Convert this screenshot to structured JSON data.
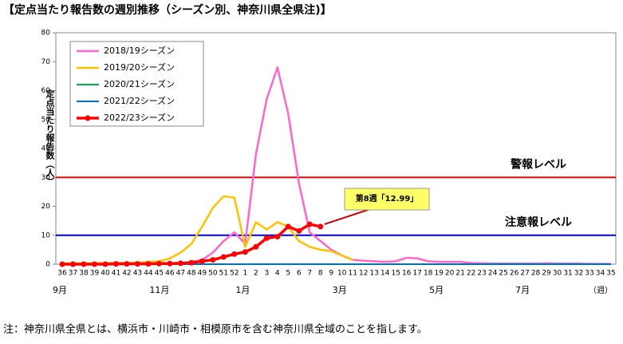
{
  "chart_data": {
    "type": "line",
    "title": "【定点当たり報告数の週別推移（シーズン別、神奈川県全県注)】",
    "y_label": "定点当たり報告数（人）",
    "x_unit": "（週）",
    "footnote": "注：神奈川県全県とは、横浜市・川崎市・相模原市を含む神奈川県全域のことを指します。",
    "categories": [
      "36",
      "37",
      "38",
      "39",
      "40",
      "41",
      "42",
      "43",
      "44",
      "45",
      "46",
      "47",
      "48",
      "49",
      "50",
      "51",
      "52",
      "1",
      "2",
      "3",
      "4",
      "5",
      "6",
      "7",
      "8",
      "9",
      "10",
      "11",
      "12",
      "13",
      "14",
      "15",
      "16",
      "17",
      "18",
      "19",
      "20",
      "21",
      "22",
      "23",
      "24",
      "25",
      "26",
      "27",
      "28",
      "29",
      "30",
      "31",
      "32",
      "33",
      "34",
      "35"
    ],
    "month_labels": [
      {
        "label": "9月",
        "week": "36"
      },
      {
        "label": "11月",
        "week": "45"
      },
      {
        "label": "1月",
        "week": "1"
      },
      {
        "label": "3月",
        "week": "10"
      },
      {
        "label": "5月",
        "week": "19"
      },
      {
        "label": "7月",
        "week": "27"
      }
    ],
    "series": [
      {
        "name": "2018/19シーズン",
        "color": "#ff66cc",
        "width": 2.5,
        "values": [
          0.1,
          0.1,
          0.1,
          0.1,
          0.1,
          0.1,
          0.1,
          0.2,
          0.2,
          0.2,
          0.3,
          0.4,
          0.8,
          1.5,
          4,
          8,
          11,
          7,
          38,
          57,
          68,
          52,
          28,
          11,
          8,
          5,
          3,
          1.5,
          1.2,
          1,
          0.8,
          1,
          2.2,
          2,
          1,
          0.8,
          0.8,
          0.8,
          0.4,
          0.3,
          0.2,
          0.2,
          0.2,
          0.2,
          0.2,
          0.3,
          0.2,
          0.2,
          0.2,
          0.1,
          0.1,
          0.1
        ]
      },
      {
        "name": "2019/20シーズン",
        "color": "#ffc000",
        "width": 2.5,
        "values": [
          0.3,
          0.3,
          0.3,
          0.4,
          0.4,
          0.5,
          0.5,
          0.6,
          0.8,
          1,
          2,
          4,
          7,
          13,
          19.5,
          23.5,
          23,
          6,
          14.5,
          12,
          14.5,
          13,
          8,
          6,
          5,
          4.5,
          3,
          1.5,
          null,
          null,
          null,
          null,
          null,
          null,
          null,
          null,
          null,
          null,
          null,
          null,
          null,
          null,
          null,
          null,
          null,
          null,
          null,
          null,
          null,
          null,
          null,
          null
        ]
      },
      {
        "name": "2020/21シーズン",
        "color": "#00b050",
        "width": 2,
        "values": [
          0,
          0,
          0,
          0,
          0,
          0,
          0,
          0,
          0,
          0,
          0,
          0,
          0,
          0,
          0,
          0,
          0,
          0,
          0,
          0,
          0,
          0,
          0,
          0,
          0,
          0,
          0,
          0,
          0,
          0,
          0,
          0,
          0,
          0,
          0,
          0,
          0,
          0,
          0,
          0,
          0,
          0,
          0,
          0,
          0,
          0,
          0,
          0,
          0,
          0,
          0,
          0
        ]
      },
      {
        "name": "2021/22シーズン",
        "color": "#0070c0",
        "width": 2,
        "values": [
          0,
          0,
          0,
          0,
          0,
          0,
          0,
          0,
          0,
          0,
          0,
          0,
          0,
          0,
          0,
          0,
          0,
          0,
          0,
          0,
          0,
          0,
          0,
          0,
          0,
          0,
          0,
          0,
          0,
          0,
          0,
          0,
          0,
          0,
          0,
          0,
          0,
          0,
          0,
          0,
          0,
          0,
          0,
          0,
          0,
          0,
          0,
          0,
          0,
          0,
          0,
          0
        ]
      },
      {
        "name": "2022/23シーズン",
        "color": "#ff0000",
        "width": 3.5,
        "markers": true,
        "values": [
          0,
          0,
          0,
          0,
          0,
          0.1,
          0.1,
          0.1,
          0.1,
          0.2,
          0.2,
          0.3,
          0.5,
          1,
          1.5,
          2.5,
          3.5,
          4.2,
          6,
          9,
          9.5,
          13,
          11.5,
          13.8,
          12.99,
          null,
          null,
          null,
          null,
          null,
          null,
          null,
          null,
          null,
          null,
          null,
          null,
          null,
          null,
          null,
          null,
          null,
          null,
          null,
          null,
          null,
          null,
          null,
          null,
          null,
          null,
          null
        ]
      }
    ],
    "reference_lines": [
      {
        "value": 30,
        "label": "警報レベル",
        "color": "#ff0000"
      },
      {
        "value": 10,
        "label": "注意報レベル",
        "color": "#0000cc"
      }
    ],
    "annotation": {
      "text": "第8週「12.99」",
      "series": 4,
      "index": 24
    },
    "ylim": [
      0,
      80
    ],
    "yticks": [
      0,
      10,
      20,
      30,
      40,
      50,
      60,
      70,
      80
    ]
  }
}
